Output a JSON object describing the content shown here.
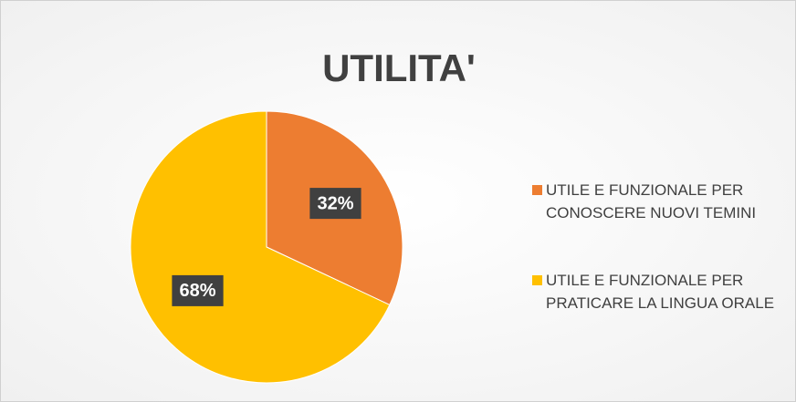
{
  "chart_data": {
    "type": "pie",
    "title": "UTILITA'",
    "categories": [
      "UTILE E FUNZIONALE PER CONOSCERE NUOVI TEMINI",
      "UTILE E FUNZIONALE PER PRATICARE LA LINGUA ORALE"
    ],
    "values": [
      32,
      68
    ],
    "value_labels": [
      "32%",
      "68%"
    ],
    "colors": [
      "#ed7d31",
      "#ffc000"
    ],
    "legend": "right"
  }
}
